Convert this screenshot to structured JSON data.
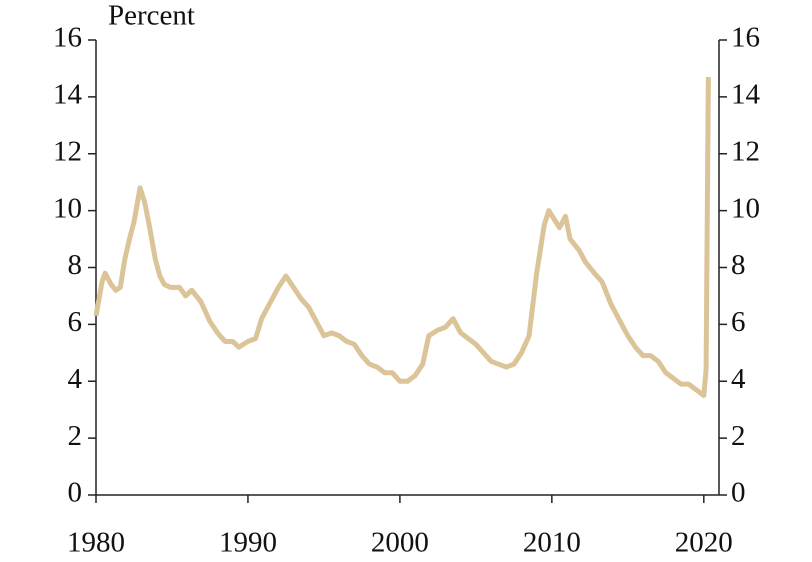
{
  "chart_data": {
    "type": "line",
    "title": "Percent",
    "x": [
      1980.0,
      1980.4,
      1980.6,
      1981.0,
      1981.3,
      1981.6,
      1981.9,
      1982.2,
      1982.5,
      1982.9,
      1983.2,
      1983.5,
      1983.9,
      1984.2,
      1984.5,
      1984.9,
      1985.5,
      1985.9,
      1986.3,
      1986.9,
      1987.5,
      1988.0,
      1988.5,
      1989.0,
      1989.4,
      1990.0,
      1990.5,
      1990.9,
      1991.5,
      1992.0,
      1992.5,
      1993.0,
      1993.5,
      1994.0,
      1994.5,
      1995.0,
      1995.5,
      1996.0,
      1996.5,
      1997.0,
      1997.5,
      1998.0,
      1998.5,
      1999.0,
      1999.5,
      2000.0,
      2000.5,
      2001.0,
      2001.5,
      2001.9,
      2002.5,
      2003.0,
      2003.5,
      2004.0,
      2004.5,
      2005.0,
      2005.5,
      2006.0,
      2006.5,
      2007.0,
      2007.5,
      2008.0,
      2008.5,
      2009.0,
      2009.5,
      2009.8,
      2010.5,
      2010.9,
      2011.2,
      2011.8,
      2012.2,
      2012.8,
      2013.3,
      2013.9,
      2014.5,
      2015.0,
      2015.5,
      2016.0,
      2016.5,
      2017.0,
      2017.5,
      2018.0,
      2018.5,
      2019.0,
      2019.5,
      2020.0,
      2020.15,
      2020.3
    ],
    "series": [
      {
        "color": "#dcc499",
        "values": [
          6.3,
          7.5,
          7.8,
          7.4,
          7.2,
          7.3,
          8.3,
          9.0,
          9.6,
          10.8,
          10.3,
          9.5,
          8.3,
          7.7,
          7.4,
          7.3,
          7.3,
          7.0,
          7.2,
          6.8,
          6.1,
          5.7,
          5.4,
          5.4,
          5.2,
          5.4,
          5.5,
          6.2,
          6.8,
          7.3,
          7.7,
          7.3,
          6.9,
          6.6,
          6.1,
          5.6,
          5.7,
          5.6,
          5.4,
          5.3,
          4.9,
          4.6,
          4.5,
          4.3,
          4.3,
          4.0,
          4.0,
          4.2,
          4.6,
          5.6,
          5.8,
          5.9,
          6.2,
          5.7,
          5.5,
          5.3,
          5.0,
          4.7,
          4.6,
          4.5,
          4.6,
          5.0,
          5.6,
          7.8,
          9.5,
          10.0,
          9.4,
          9.8,
          9.0,
          8.6,
          8.2,
          7.8,
          7.5,
          6.7,
          6.1,
          5.6,
          5.2,
          4.9,
          4.9,
          4.7,
          4.3,
          4.1,
          3.9,
          3.9,
          3.7,
          3.5,
          4.4,
          14.7
        ]
      }
    ],
    "xlim": [
      1980,
      2021
    ],
    "xticks": [
      1980,
      1990,
      2000,
      2010,
      2020
    ],
    "ylim": [
      0,
      16
    ],
    "yticks": [
      0,
      2,
      4,
      6,
      8,
      10,
      12,
      14,
      16
    ],
    "y2lim": [
      0,
      16
    ],
    "y2ticks": [
      0,
      2,
      4,
      6,
      8,
      10,
      12,
      14,
      16
    ]
  }
}
